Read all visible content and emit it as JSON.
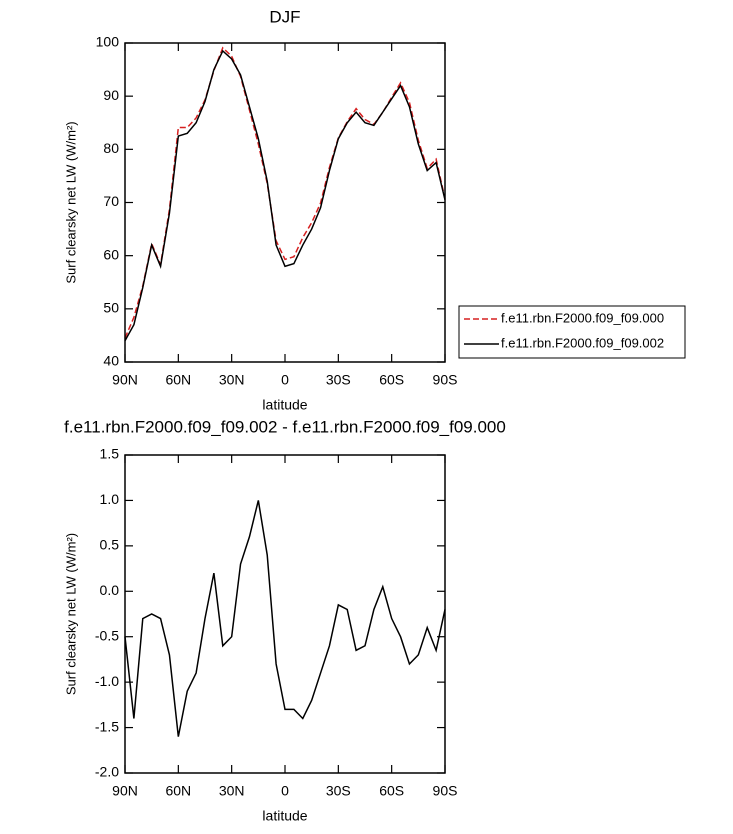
{
  "chart_data": [
    {
      "type": "line",
      "title": "DJF",
      "xlabel": "latitude",
      "ylabel": "Surf clearsky net LW (W/m²)",
      "x": [
        90,
        85,
        80,
        75,
        70,
        65,
        60,
        55,
        50,
        45,
        40,
        35,
        30,
        25,
        20,
        15,
        10,
        5,
        0,
        -5,
        -10,
        -15,
        -20,
        -25,
        -30,
        -35,
        -40,
        -45,
        -50,
        -55,
        -60,
        -65,
        -70,
        -75,
        -80,
        -85,
        -90
      ],
      "xlim": [
        90,
        -90
      ],
      "xticks": [
        {
          "value": 90,
          "label": "90N"
        },
        {
          "value": 60,
          "label": "60N"
        },
        {
          "value": 30,
          "label": "30N"
        },
        0,
        {
          "value": -30,
          "label": "30S"
        },
        {
          "value": -60,
          "label": "60S"
        },
        {
          "value": -90,
          "label": "90S"
        }
      ],
      "ylim": [
        40,
        100
      ],
      "yticks": [
        40,
        50,
        60,
        70,
        80,
        90,
        100
      ],
      "legend": "outside right",
      "series": [
        {
          "name": "f.e11.rbn.F2000.f09_f09.000",
          "color": "#d62020",
          "line_style": "dashed",
          "values": [
            44.5,
            48.4,
            54.3,
            62.25,
            58.3,
            68.7,
            84.1,
            84.1,
            85.9,
            89.3,
            94.8,
            99.1,
            97.5,
            93.7,
            87.4,
            81,
            73.6,
            62.8,
            59.3,
            59.8,
            63.4,
            66.2,
            69.9,
            76.6,
            82.15,
            85.2,
            87.65,
            85.6,
            84.7,
            86.95,
            89.8,
            92.5,
            88.8,
            81.7,
            76.4,
            78.15,
            70.7
          ]
        },
        {
          "name": "f.e11.rbn.F2000.f09_f09.002",
          "color": "#000000",
          "line_style": "solid",
          "values": [
            44,
            47,
            54,
            62,
            58,
            68,
            82.5,
            83,
            85,
            89,
            95,
            98.5,
            97,
            94,
            88,
            82,
            74,
            62,
            58,
            58.5,
            62,
            65,
            69,
            76,
            82,
            85,
            87,
            85,
            84.5,
            87,
            89.5,
            92,
            88,
            81,
            76,
            77.5,
            70.5
          ]
        }
      ]
    },
    {
      "type": "line",
      "title": "f.e11.rbn.F2000.f09_f09.002 - f.e11.rbn.F2000.f09_f09.000",
      "xlabel": "latitude",
      "ylabel": "Surf clearsky net LW (W/m²)",
      "x": [
        90,
        85,
        80,
        75,
        70,
        65,
        60,
        55,
        50,
        45,
        40,
        35,
        30,
        25,
        20,
        15,
        10,
        5,
        0,
        -5,
        -10,
        -15,
        -20,
        -25,
        -30,
        -35,
        -40,
        -45,
        -50,
        -55,
        -60,
        -65,
        -70,
        -75,
        -80,
        -85,
        -90
      ],
      "xlim": [
        90,
        -90
      ],
      "xticks": [
        {
          "value": 90,
          "label": "90N"
        },
        {
          "value": 60,
          "label": "60N"
        },
        {
          "value": 30,
          "label": "30N"
        },
        0,
        {
          "value": -30,
          "label": "30S"
        },
        {
          "value": -60,
          "label": "60S"
        },
        {
          "value": -90,
          "label": "90S"
        }
      ],
      "ylim": [
        -2,
        1.5
      ],
      "yticks": [
        {
          "value": -2,
          "label": "-2.0"
        },
        {
          "value": -1.5,
          "label": "-1.5"
        },
        {
          "value": -1,
          "label": "-1.0"
        },
        {
          "value": -0.5,
          "label": "-0.5"
        },
        {
          "value": 0,
          "label": "0.0"
        },
        {
          "value": 0.5,
          "label": "0.5"
        },
        {
          "value": 1,
          "label": "1.0"
        },
        {
          "value": 1.5,
          "label": "1.5"
        }
      ],
      "series": [
        {
          "color": "#000000",
          "line_style": "solid",
          "values": [
            -0.5,
            -1.4,
            -0.3,
            -0.25,
            -0.3,
            -0.7,
            -1.6,
            -1.1,
            -0.9,
            -0.3,
            0.2,
            -0.6,
            -0.5,
            0.3,
            0.6,
            1.0,
            0.4,
            -0.8,
            -1.3,
            -1.3,
            -1.4,
            -1.2,
            -0.9,
            -0.6,
            -0.15,
            -0.2,
            -0.65,
            -0.6,
            -0.2,
            0.05,
            -0.3,
            -0.5,
            -0.8,
            -0.7,
            -0.4,
            -0.65,
            -0.2
          ]
        }
      ]
    }
  ]
}
